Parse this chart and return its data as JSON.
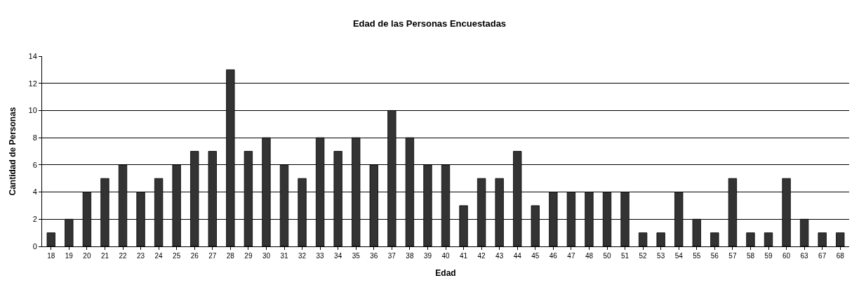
{
  "chart_data": {
    "type": "bar",
    "title": "Edad de las Personas Encuestadas",
    "xlabel": "Edad",
    "ylabel": "Cantidad de Personas",
    "categories": [
      "18",
      "19",
      "20",
      "21",
      "22",
      "23",
      "24",
      "25",
      "26",
      "27",
      "28",
      "29",
      "30",
      "31",
      "32",
      "33",
      "34",
      "35",
      "36",
      "37",
      "38",
      "39",
      "40",
      "41",
      "42",
      "43",
      "44",
      "45",
      "46",
      "47",
      "48",
      "50",
      "51",
      "52",
      "53",
      "54",
      "55",
      "56",
      "57",
      "58",
      "59",
      "60",
      "63",
      "67",
      "68"
    ],
    "values": [
      1,
      2,
      4,
      5,
      6,
      4,
      5,
      6,
      7,
      7,
      13,
      7,
      8,
      6,
      5,
      8,
      7,
      8,
      6,
      10,
      8,
      6,
      6,
      3,
      5,
      5,
      7,
      3,
      4,
      4,
      4,
      4,
      4,
      1,
      1,
      4,
      2,
      1,
      5,
      1,
      1,
      5,
      2,
      1,
      1
    ],
    "color": "#333333",
    "ylim": [
      0,
      14
    ],
    "yticks": [
      0,
      2,
      4,
      6,
      8,
      10,
      12,
      14
    ],
    "grid": "y"
  }
}
